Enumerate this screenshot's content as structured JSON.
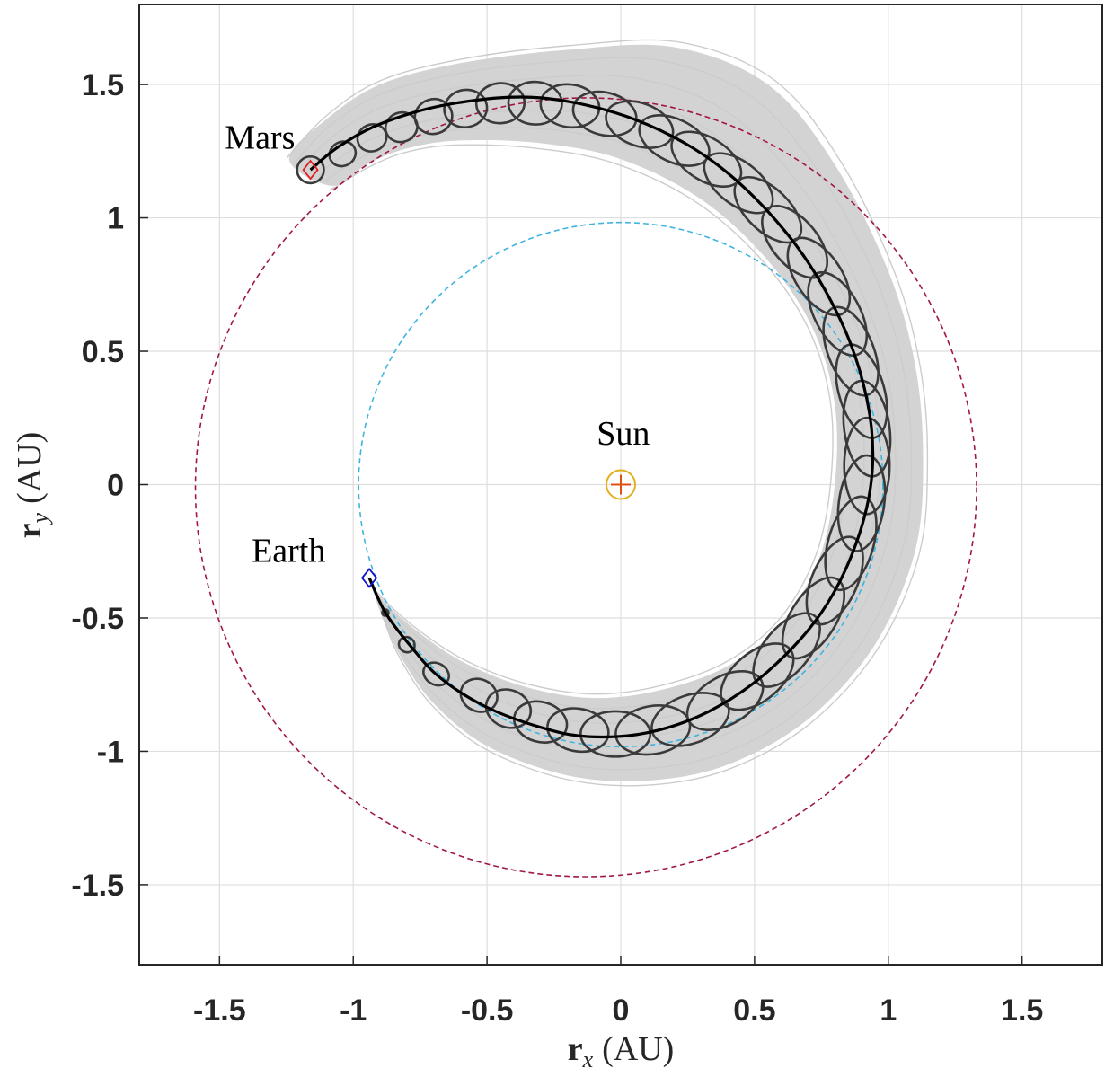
{
  "chart_data": {
    "type": "line",
    "title": "",
    "xlabel": {
      "main": "r",
      "sub": "x",
      "unit": "(AU)"
    },
    "ylabel": {
      "main": "r",
      "sub": "y",
      "unit": "(AU)"
    },
    "xlim": [
      -1.8,
      1.8
    ],
    "ylim": [
      -1.8,
      1.8
    ],
    "xticks": [
      -1.5,
      -1,
      -0.5,
      0,
      0.5,
      1,
      1.5
    ],
    "yticks": [
      -1.5,
      -1,
      -0.5,
      0,
      0.5,
      1,
      1.5
    ],
    "xtick_labels": [
      "-1.5",
      "-1",
      "-0.5",
      "0",
      "0.5",
      "1",
      "1.5"
    ],
    "ytick_labels": [
      "-1.5",
      "-1",
      "-0.5",
      "0",
      "0.5",
      "1",
      "1.5"
    ],
    "grid": true,
    "aspect": "equal",
    "annotations": [
      {
        "text": "Mars",
        "x": -1.48,
        "y": 1.26
      },
      {
        "text": "Sun",
        "x": -0.09,
        "y": 0.15
      },
      {
        "text": "Earth",
        "x": -1.38,
        "y": -0.29
      }
    ],
    "sun": {
      "x": 0,
      "y": 0,
      "color": "#e0b020",
      "cross_color": "#e05010"
    },
    "earth_orbit": {
      "radius": 0.98,
      "style": "dashed",
      "color": "#40b4e0"
    },
    "mars_orbit": {
      "center_x": -0.13,
      "center_y": -0.01,
      "radius": 1.46,
      "style": "dashed",
      "color": "#a01840"
    },
    "transfer": {
      "color": "#000000",
      "points": [
        [
          -0.94,
          -0.35
        ],
        [
          -0.88,
          -0.48
        ],
        [
          -0.79,
          -0.6
        ],
        [
          -0.68,
          -0.72
        ],
        [
          -0.51,
          -0.83
        ],
        [
          -0.3,
          -0.91
        ],
        [
          -0.12,
          -0.945
        ],
        [
          0.1,
          -0.93
        ],
        [
          0.33,
          -0.85
        ],
        [
          0.55,
          -0.7
        ],
        [
          0.75,
          -0.48
        ],
        [
          0.88,
          -0.22
        ],
        [
          0.94,
          0.05
        ],
        [
          0.92,
          0.32
        ],
        [
          0.82,
          0.62
        ],
        [
          0.63,
          0.93
        ],
        [
          0.36,
          1.2
        ],
        [
          0.05,
          1.37
        ],
        [
          -0.3,
          1.45
        ],
        [
          -0.62,
          1.43
        ],
        [
          -0.88,
          1.36
        ],
        [
          -1.05,
          1.27
        ],
        [
          -1.16,
          1.18
        ]
      ]
    },
    "markers": [
      {
        "name": "Earth",
        "x": -0.94,
        "y": -0.35,
        "shape": "diamond",
        "color": "#1010d0"
      },
      {
        "name": "Mars",
        "x": -1.16,
        "y": 1.18,
        "shape": "diamond",
        "color": "#e02020"
      }
    ],
    "uncertainty_band": {
      "fill": "#d3d3d3",
      "outer": [
        [
          -0.94,
          -0.35
        ],
        [
          -0.88,
          -0.52
        ],
        [
          -0.82,
          -0.65
        ],
        [
          -0.7,
          -0.82
        ],
        [
          -0.5,
          -0.98
        ],
        [
          -0.2,
          -1.09
        ],
        [
          0.1,
          -1.11
        ],
        [
          0.4,
          -1.05
        ],
        [
          0.7,
          -0.88
        ],
        [
          0.95,
          -0.6
        ],
        [
          1.1,
          -0.25
        ],
        [
          1.13,
          0.1
        ],
        [
          1.1,
          0.45
        ],
        [
          1.0,
          0.8
        ],
        [
          0.8,
          1.2
        ],
        [
          0.55,
          1.5
        ],
        [
          0.2,
          1.64
        ],
        [
          -0.2,
          1.63
        ],
        [
          -0.6,
          1.58
        ],
        [
          -0.9,
          1.5
        ],
        [
          -1.1,
          1.37
        ],
        [
          -1.24,
          1.22
        ]
      ],
      "inner": [
        [
          -1.08,
          1.12
        ],
        [
          -0.95,
          1.2
        ],
        [
          -0.8,
          1.26
        ],
        [
          -0.6,
          1.29
        ],
        [
          -0.3,
          1.28
        ],
        [
          0.0,
          1.22
        ],
        [
          0.3,
          1.07
        ],
        [
          0.55,
          0.84
        ],
        [
          0.72,
          0.58
        ],
        [
          0.8,
          0.3
        ],
        [
          0.8,
          0.0
        ],
        [
          0.74,
          -0.28
        ],
        [
          0.6,
          -0.52
        ],
        [
          0.4,
          -0.68
        ],
        [
          0.15,
          -0.77
        ],
        [
          -0.1,
          -0.8
        ],
        [
          -0.35,
          -0.76
        ],
        [
          -0.58,
          -0.67
        ],
        [
          -0.76,
          -0.55
        ],
        [
          -0.9,
          -0.42
        ],
        [
          -0.94,
          -0.35
        ]
      ]
    },
    "error_ellipses": [
      {
        "x": -0.88,
        "y": -0.48,
        "a": 0.012,
        "b": 0.012,
        "angle": 0
      },
      {
        "x": -0.8,
        "y": -0.6,
        "a": 0.03,
        "b": 0.028,
        "angle": -35
      },
      {
        "x": -0.69,
        "y": -0.71,
        "a": 0.05,
        "b": 0.04,
        "angle": -30
      },
      {
        "x": -0.53,
        "y": -0.79,
        "a": 0.07,
        "b": 0.06,
        "angle": -25
      },
      {
        "x": -0.42,
        "y": -0.84,
        "a": 0.085,
        "b": 0.07,
        "angle": -20
      },
      {
        "x": -0.3,
        "y": -0.89,
        "a": 0.1,
        "b": 0.075,
        "angle": -15
      },
      {
        "x": -0.16,
        "y": -0.92,
        "a": 0.115,
        "b": 0.08,
        "angle": -10
      },
      {
        "x": -0.02,
        "y": -0.935,
        "a": 0.13,
        "b": 0.085,
        "angle": 0
      },
      {
        "x": 0.12,
        "y": -0.92,
        "a": 0.14,
        "b": 0.09,
        "angle": 10
      },
      {
        "x": 0.26,
        "y": -0.88,
        "a": 0.15,
        "b": 0.09,
        "angle": 20
      },
      {
        "x": 0.39,
        "y": -0.81,
        "a": 0.155,
        "b": 0.09,
        "angle": 30
      },
      {
        "x": 0.51,
        "y": -0.72,
        "a": 0.16,
        "b": 0.09,
        "angle": 40
      },
      {
        "x": 0.62,
        "y": -0.62,
        "a": 0.165,
        "b": 0.085,
        "angle": 50
      },
      {
        "x": 0.72,
        "y": -0.5,
        "a": 0.17,
        "b": 0.085,
        "angle": 58
      },
      {
        "x": 0.8,
        "y": -0.36,
        "a": 0.175,
        "b": 0.085,
        "angle": 66
      },
      {
        "x": 0.86,
        "y": -0.22,
        "a": 0.18,
        "b": 0.085,
        "angle": 74
      },
      {
        "x": 0.9,
        "y": -0.07,
        "a": 0.18,
        "b": 0.085,
        "angle": 82
      },
      {
        "x": 0.92,
        "y": 0.07,
        "a": 0.18,
        "b": 0.085,
        "angle": 90
      },
      {
        "x": 0.92,
        "y": 0.21,
        "a": 0.18,
        "b": 0.085,
        "angle": 98
      },
      {
        "x": 0.9,
        "y": 0.35,
        "a": 0.18,
        "b": 0.085,
        "angle": 106
      },
      {
        "x": 0.86,
        "y": 0.5,
        "a": 0.175,
        "b": 0.085,
        "angle": 112
      },
      {
        "x": 0.81,
        "y": 0.64,
        "a": 0.17,
        "b": 0.085,
        "angle": 118
      },
      {
        "x": 0.74,
        "y": 0.78,
        "a": 0.165,
        "b": 0.085,
        "angle": 124
      },
      {
        "x": 0.65,
        "y": 0.91,
        "a": 0.16,
        "b": 0.085,
        "angle": 130
      },
      {
        "x": 0.55,
        "y": 1.03,
        "a": 0.155,
        "b": 0.08,
        "angle": 136
      },
      {
        "x": 0.44,
        "y": 1.13,
        "a": 0.15,
        "b": 0.08,
        "angle": 142
      },
      {
        "x": 0.32,
        "y": 1.22,
        "a": 0.145,
        "b": 0.08,
        "angle": 148
      },
      {
        "x": 0.2,
        "y": 1.29,
        "a": 0.14,
        "b": 0.08,
        "angle": 154
      },
      {
        "x": 0.07,
        "y": 1.35,
        "a": 0.13,
        "b": 0.08,
        "angle": 160
      },
      {
        "x": -0.06,
        "y": 1.39,
        "a": 0.12,
        "b": 0.08,
        "angle": 166
      },
      {
        "x": -0.19,
        "y": 1.42,
        "a": 0.11,
        "b": 0.08,
        "angle": 172
      },
      {
        "x": -0.32,
        "y": 1.43,
        "a": 0.1,
        "b": 0.08,
        "angle": 178
      },
      {
        "x": -0.45,
        "y": 1.43,
        "a": 0.09,
        "b": 0.075,
        "angle": 184
      },
      {
        "x": -0.58,
        "y": 1.41,
        "a": 0.08,
        "b": 0.07,
        "angle": 190
      },
      {
        "x": -0.7,
        "y": 1.38,
        "a": 0.07,
        "b": 0.065,
        "angle": 196
      },
      {
        "x": -0.82,
        "y": 1.34,
        "a": 0.06,
        "b": 0.055,
        "angle": 200
      },
      {
        "x": -0.93,
        "y": 1.3,
        "a": 0.055,
        "b": 0.05,
        "angle": 204
      },
      {
        "x": -1.04,
        "y": 1.24,
        "a": 0.05,
        "b": 0.045,
        "angle": 208
      },
      {
        "x": -1.16,
        "y": 1.18,
        "a": 0.05,
        "b": 0.05,
        "angle": 0
      }
    ],
    "sample_trajectory_color": "#cccccc",
    "ellipse_color": "#3a3a3a"
  }
}
